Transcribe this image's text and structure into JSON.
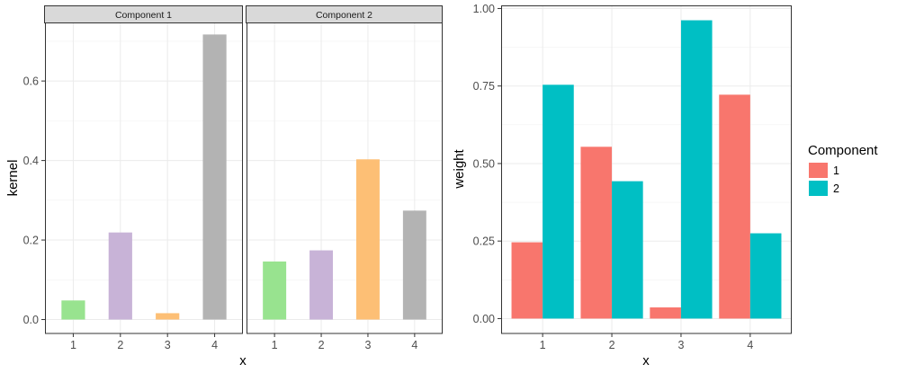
{
  "chart_data": [
    {
      "type": "bar",
      "facet": "Component 1",
      "categories": [
        "1",
        "2",
        "3",
        "4"
      ],
      "values": [
        0.048,
        0.219,
        0.016,
        0.717
      ],
      "colors": [
        "#98E38F",
        "#C8B3D7",
        "#FDBF75",
        "#B3B3B3"
      ],
      "xlabel": "x",
      "ylabel": "kernel",
      "ylim": [
        -0.035,
        0.745
      ],
      "yticks": [
        0.0,
        0.2,
        0.4,
        0.6
      ],
      "ytick_labels": [
        "0.0",
        "0.2",
        "0.4",
        "0.6"
      ]
    },
    {
      "type": "bar",
      "facet": "Component 2",
      "categories": [
        "1",
        "2",
        "3",
        "4"
      ],
      "values": [
        0.146,
        0.174,
        0.403,
        0.274
      ],
      "colors": [
        "#98E38F",
        "#C8B3D7",
        "#FDBF75",
        "#B3B3B3"
      ],
      "xlabel": "x",
      "ylabel": "kernel",
      "ylim": [
        -0.035,
        0.745
      ],
      "yticks": [
        0.0,
        0.2,
        0.4,
        0.6
      ],
      "ytick_labels": [
        "0.0",
        "0.2",
        "0.4",
        "0.6"
      ]
    },
    {
      "type": "bar",
      "categories": [
        "1",
        "2",
        "3",
        "4"
      ],
      "series": [
        {
          "name": "1",
          "color": "#F8766D",
          "values": [
            0.246,
            0.554,
            0.036,
            0.722
          ]
        },
        {
          "name": "2",
          "color": "#00BFC4",
          "values": [
            0.754,
            0.443,
            0.962,
            0.275
          ]
        }
      ],
      "xlabel": "x",
      "ylabel": "weight",
      "ylim": [
        -0.048,
        1.01
      ],
      "yticks": [
        0.0,
        0.25,
        0.5,
        0.75,
        1.0
      ],
      "ytick_labels": [
        "0.00",
        "0.25",
        "0.50",
        "0.75",
        "1.00"
      ],
      "legend": {
        "title": "Component",
        "position": "right"
      }
    }
  ]
}
